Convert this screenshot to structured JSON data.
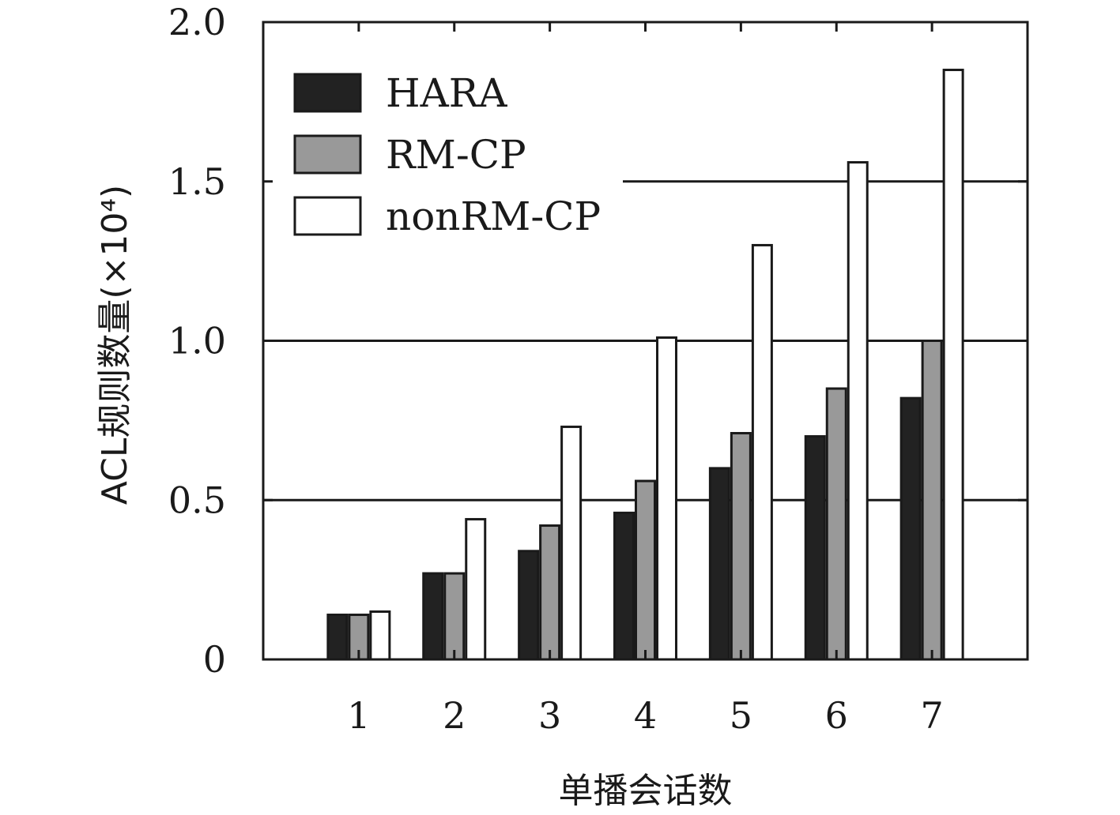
{
  "chart_data": {
    "type": "bar",
    "xlabel": "单播会话数",
    "ylabel": "ACL规则数量(×10⁴)",
    "categories": [
      "1",
      "2",
      "3",
      "4",
      "5",
      "6",
      "7"
    ],
    "yticks": [
      "0",
      "0.5",
      "1.0",
      "1.5",
      "2.0"
    ],
    "ylim": [
      0,
      2.0
    ],
    "grid": "horizontal lines at 0.5, 1.0, 1.5",
    "legend_position": "top-left",
    "series": [
      {
        "name": "HARA",
        "color": "#222222",
        "values": [
          0.14,
          0.27,
          0.34,
          0.46,
          0.6,
          0.7,
          0.82
        ]
      },
      {
        "name": "RM-CP",
        "color": "#999999",
        "values": [
          0.14,
          0.27,
          0.42,
          0.56,
          0.71,
          0.85,
          1.0
        ]
      },
      {
        "name": "nonRM-CP",
        "color": "#ffffff",
        "values": [
          0.15,
          0.44,
          0.73,
          1.01,
          1.3,
          1.56,
          1.85
        ]
      }
    ]
  }
}
